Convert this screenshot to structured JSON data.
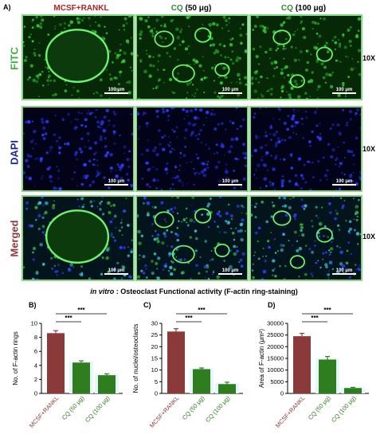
{
  "figure": {
    "panel_a_letter": "A)",
    "columns": [
      {
        "label": "MCSF+RANKL",
        "color": "#b22222"
      },
      {
        "label": "CQ",
        "suffix": "(50 μg)",
        "color": "#2e8b2e"
      },
      {
        "label": "CQ",
        "suffix": "(100 μg)",
        "color": "#2e8b2e"
      }
    ],
    "rows": [
      {
        "label": "FITC",
        "color": "#3cb043",
        "mag": "10X"
      },
      {
        "label": "DAPI",
        "color": "#1a2a9c",
        "mag": "10X"
      },
      {
        "label": "Merged",
        "color": "#8b3a3a",
        "mag": "10X"
      }
    ],
    "scale_label": "100 μm",
    "caption_italic": "in vitro",
    "caption_rest": " : Osteoclast Functional activity (F-actin ring-staining)"
  },
  "chart_data": [
    {
      "type": "bar",
      "panel": "B)",
      "categories": [
        "MCSF+RANKL",
        "CQ (50 μg)",
        "CQ (100 μg)"
      ],
      "values": [
        8.6,
        4.4,
        2.6
      ],
      "errors": [
        0.35,
        0.25,
        0.2
      ],
      "ylabel": "No. of F-actin rings",
      "ylim": [
        0,
        10
      ],
      "yticks": [
        0,
        2,
        4,
        6,
        8,
        10
      ],
      "significance": [
        "***",
        "***"
      ]
    },
    {
      "type": "bar",
      "panel": "C)",
      "categories": [
        "MCSF+RANKL",
        "CQ (50 μg)",
        "CQ (100 μg)"
      ],
      "values": [
        26.5,
        10.4,
        4.0
      ],
      "errors": [
        1.2,
        0.5,
        0.8
      ],
      "ylabel": "No. of nuclei/osteoclasts",
      "ylim": [
        0,
        30
      ],
      "yticks": [
        0,
        5,
        10,
        15,
        20,
        25,
        30
      ],
      "significance": [
        "***",
        "***"
      ]
    },
    {
      "type": "bar",
      "panel": "D)",
      "categories": [
        "MCSF+RANKL",
        "CQ (50 μg)",
        "CQ (100 μg)"
      ],
      "values": [
        24500,
        14500,
        2300
      ],
      "errors": [
        1200,
        1300,
        300
      ],
      "ylabel": "Area of F-actin (μm²)",
      "ylim": [
        0,
        30000
      ],
      "yticks": [
        0,
        5000,
        10000,
        15000,
        20000,
        25000,
        30000
      ],
      "significance": [
        "***",
        "***"
      ]
    }
  ],
  "bar_colors": [
    "#8b3a3a",
    "#2e7d1e",
    "#2e7d1e"
  ],
  "tick_label_colors": [
    "#8b3a3a",
    "#2e7d1e",
    "#2e7d1e"
  ]
}
